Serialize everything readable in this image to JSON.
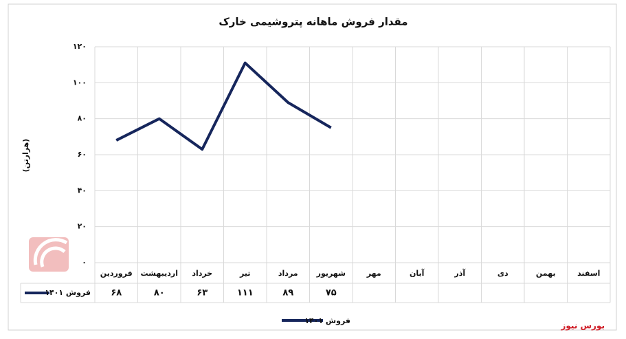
{
  "chart_data": {
    "type": "line",
    "title": "مقدار فروش ماهانه پتروشیمی خارک",
    "y_label": "(هزارتن)",
    "source": "بورس نیوز",
    "categories": [
      "فروردین",
      "اردیبهشت",
      "خرداد",
      "تیر",
      "مرداد",
      "شهریور",
      "مهر",
      "آبان",
      "آذر",
      "دی",
      "بهمن",
      "اسفند"
    ],
    "series": [
      {
        "name": "فروش ۱۴۰۱",
        "color": "#16265c",
        "values": [
          68,
          80,
          63,
          111,
          89,
          75,
          null,
          null,
          null,
          null,
          null,
          null
        ],
        "value_labels": [
          "۶۸",
          "۸۰",
          "۶۳",
          "۱۱۱",
          "۸۹",
          "۷۵",
          null,
          null,
          null,
          null,
          null,
          null
        ]
      }
    ],
    "ylim": [
      0,
      120
    ],
    "yticks": [
      {
        "value": 0,
        "label": "۰"
      },
      {
        "value": 20,
        "label": "۲۰"
      },
      {
        "value": 40,
        "label": "۴۰"
      },
      {
        "value": 60,
        "label": "۶۰"
      },
      {
        "value": 80,
        "label": "۸۰"
      },
      {
        "value": 100,
        "label": "۱۰۰"
      },
      {
        "value": 120,
        "label": "۱۲۰"
      }
    ],
    "grid": true
  }
}
